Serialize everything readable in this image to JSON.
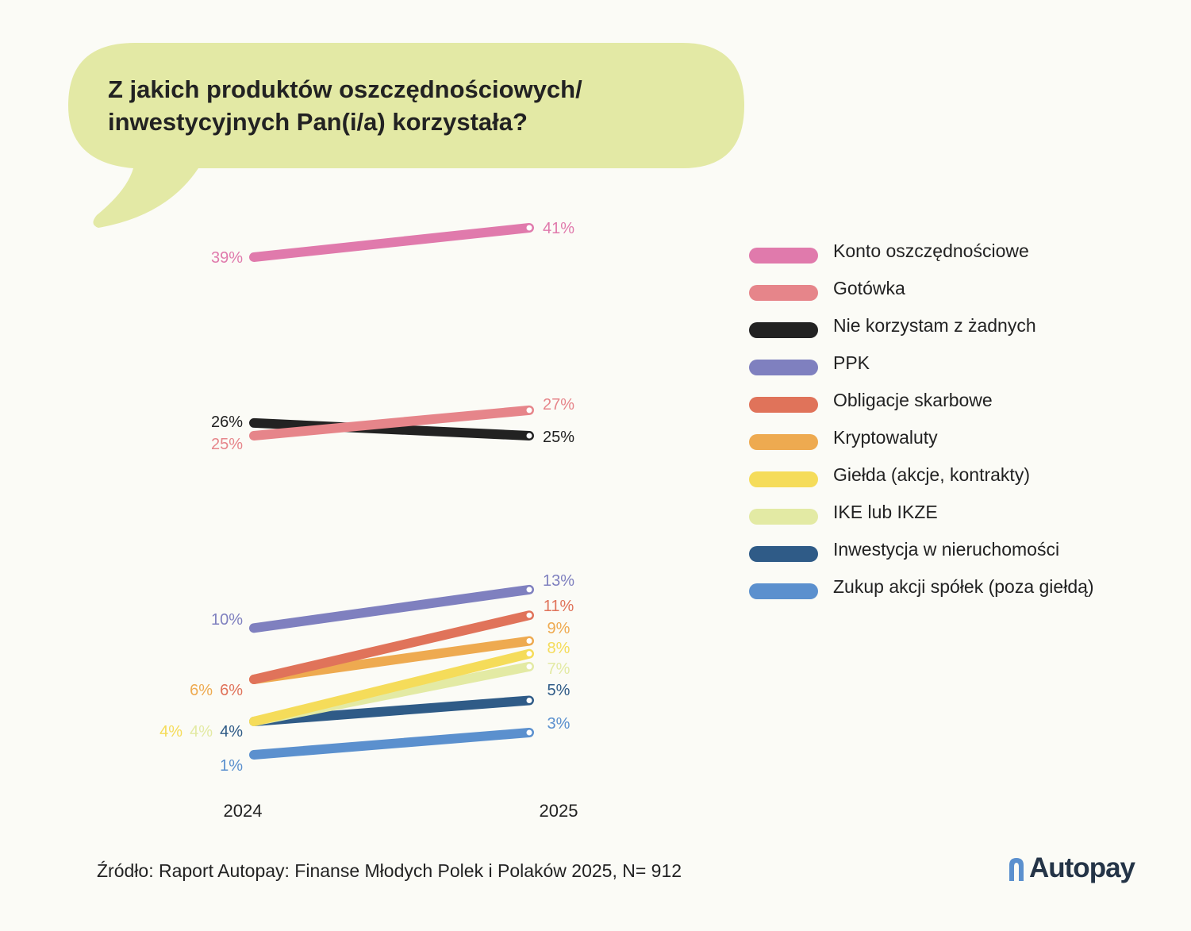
{
  "title": "Z jakich produktów oszczędnościowych/ inwestycyjnych Pan(i/a) korzystała?",
  "source": "Źródło: Raport Autopay: Finanse Młodych Polek i Polaków 2025, N= 912",
  "brand": {
    "name": "Autopay",
    "icon": "autopay-logo-icon"
  },
  "chart_data": {
    "type": "line",
    "title": "Z jakich produktów oszczędnościowych/ inwestycyjnych Pan(i/a) korzystała?",
    "x": [
      "2024",
      "2025"
    ],
    "unit": "%",
    "grid": false,
    "legend_position": "right",
    "series": [
      {
        "name": "Konto oszczędnościowe",
        "values": [
          39,
          41
        ],
        "color": "#e07aac"
      },
      {
        "name": "Gotówka",
        "values": [
          25,
          27
        ],
        "color": "#e6858a"
      },
      {
        "name": "Nie korzystam z żadnych",
        "values": [
          26,
          25
        ],
        "color": "#222222"
      },
      {
        "name": "PPK",
        "values": [
          10,
          13
        ],
        "color": "#7f80bf"
      },
      {
        "name": "Obligacje skarbowe",
        "values": [
          6,
          11
        ],
        "color": "#e0735a"
      },
      {
        "name": "Kryptowaluty",
        "values": [
          6,
          9
        ],
        "color": "#eeaa50"
      },
      {
        "name": "Giełda (akcje, kontrakty)",
        "values": [
          4,
          8
        ],
        "color": "#f5dc5a"
      },
      {
        "name": "IKE lub IKZE",
        "values": [
          4,
          7
        ],
        "color": "#e3eaa4"
      },
      {
        "name": "Inwestycja w nieruchomości",
        "values": [
          4,
          5
        ],
        "color": "#2f5b87"
      },
      {
        "name": "Zukup akcji spółek (poza giełdą)",
        "values": [
          1,
          3
        ],
        "color": "#5b90ce"
      }
    ]
  }
}
